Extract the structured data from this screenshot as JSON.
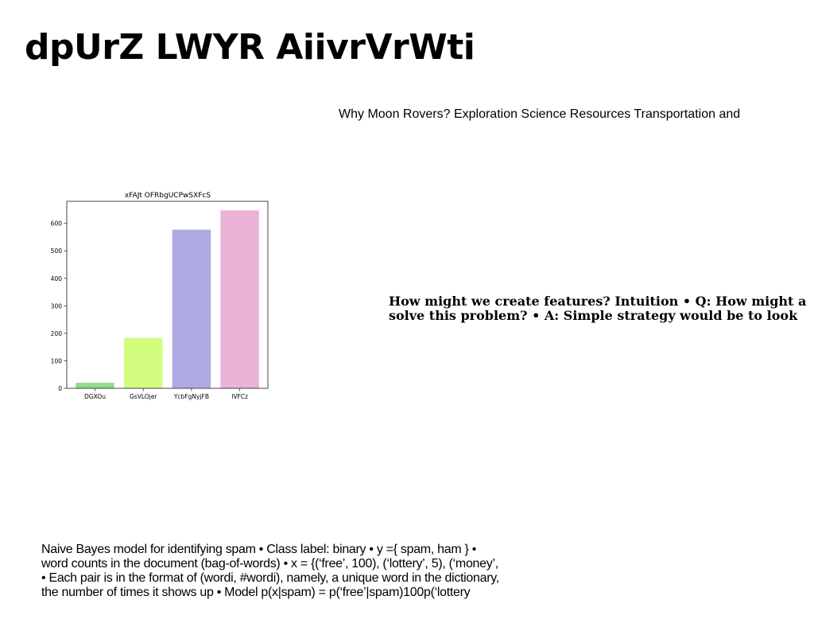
{
  "slide": {
    "title": "dpUrZ LWYR AiivrVrWti",
    "moon_text": "Why Moon Rovers? Exploration Science Resources Transportation and",
    "features_lines": [
      "How might we create features? Intuition • Q: How might a",
      "solve this problem? • A: Simple strategy would be to look"
    ],
    "bayes_lines": [
      "Naive Bayes model for identifying spam • Class label: binary • y ={ spam, ham } •",
      "word counts in the document (bag-of-words) • x = {(‘free’, 100), (‘lottery’, 5), (‘money’,",
      "• Each pair is in the format of (wordi, #wordi), namely, a unique word in the dictionary,",
      "the number of times it shows up • Model p(x|spam) = p(‘free’|spam)100p(‘lottery"
    ]
  },
  "chart_data": {
    "type": "bar",
    "title": "xFAJt OFRbgUCPwSXFcS",
    "xlabel": "",
    "ylabel": "",
    "categories": [
      "DGXOu",
      "GsVLOjer",
      "YcbFgNyjFB",
      "lVFCz"
    ],
    "values": [
      20,
      183,
      577,
      647
    ],
    "colors": [
      "#90dc8a",
      "#d3fc7f",
      "#b0aae2",
      "#ebb4d6"
    ],
    "ylim": [
      0,
      680
    ],
    "yticks": [
      0,
      100,
      200,
      300,
      400,
      500,
      600
    ],
    "grid": false
  }
}
